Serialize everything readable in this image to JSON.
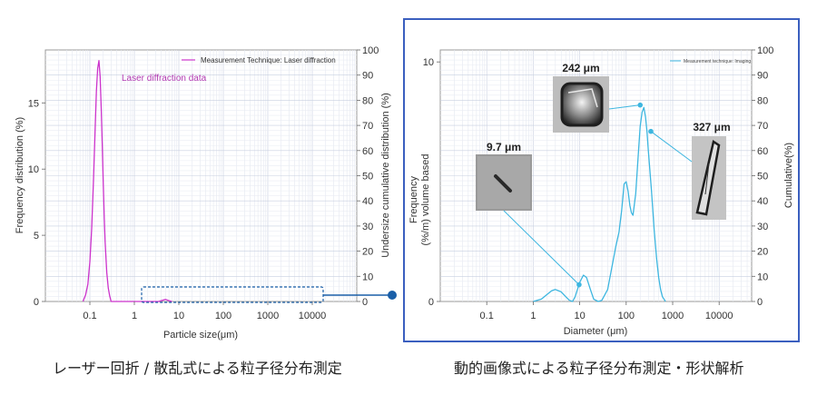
{
  "colors": {
    "laser": "#cc33cc",
    "imaging": "#3db6e0",
    "connector": "#1a5fa8",
    "frame": "#3b5fbf"
  },
  "chart_data": [
    {
      "type": "line",
      "title": "",
      "xlabel": "Particle size(μm)",
      "ylabel": "Frequency distribution (%)",
      "y2label": "Undersize cumulative distribution (%)",
      "x_scale": "log",
      "xlim": [
        0.01,
        100000
      ],
      "ylim": [
        0,
        19
      ],
      "y2lim": [
        0,
        100
      ],
      "x_ticks": [
        "0.1",
        "1",
        "10",
        "100",
        "1000",
        "10000"
      ],
      "y_ticks": [
        "0",
        "5",
        "10",
        "15"
      ],
      "y2_ticks": [
        "0",
        "10",
        "20",
        "30",
        "40",
        "50",
        "60",
        "70",
        "80",
        "90",
        "100"
      ],
      "legend": "Measurement Technique: Laser diffraction",
      "legend_position": "top-right",
      "annotation": "Laser diffraction data",
      "grid": true,
      "series": [
        {
          "name": "Measurement Technique: Laser diffraction",
          "x": [
            0.07,
            0.08,
            0.09,
            0.1,
            0.11,
            0.12,
            0.13,
            0.14,
            0.15,
            0.16,
            0.17,
            0.18,
            0.19,
            0.2,
            0.21,
            0.22,
            0.24,
            0.26,
            0.28,
            0.3,
            3.5,
            4,
            5,
            6,
            7
          ],
          "y": [
            0,
            0.5,
            1.3,
            3.0,
            5.5,
            9.0,
            12.6,
            15.9,
            17.6,
            18.2,
            17.0,
            14.6,
            11.7,
            8.8,
            6.4,
            4.5,
            2.2,
            1.0,
            0.4,
            0,
            0,
            0.06,
            0.16,
            0.06,
            0
          ]
        }
      ]
    },
    {
      "type": "line",
      "title": "",
      "xlabel": "Diameter (μm)",
      "ylabel": "Frequency\n(%/m) volume based",
      "y2label": "Cumulative(%)",
      "x_scale": "log",
      "xlim": [
        0.01,
        50000
      ],
      "ylim": [
        0,
        10.5
      ],
      "y2lim": [
        0,
        100
      ],
      "x_ticks": [
        "0.1",
        "1",
        "10",
        "100",
        "1000",
        "10000"
      ],
      "y_ticks": [
        "0",
        "10"
      ],
      "y2_ticks": [
        "0",
        "10",
        "20",
        "30",
        "40",
        "50",
        "60",
        "70",
        "80",
        "90",
        "100"
      ],
      "legend": "Measurement technique: Imaging",
      "legend_position": "top-right",
      "grid": true,
      "series": [
        {
          "name": "Measurement technique: Imaging",
          "x": [
            1,
            1.5,
            2,
            2.5,
            3,
            4,
            5,
            6,
            7,
            8,
            10,
            12,
            14,
            17,
            20,
            25,
            30,
            40,
            50,
            60,
            70,
            80,
            90,
            100,
            110,
            120,
            130,
            140,
            160,
            180,
            200,
            220,
            240,
            260,
            280,
            300,
            350,
            400,
            450,
            500,
            550,
            600,
            700
          ],
          "y": [
            0,
            0.1,
            0.3,
            0.45,
            0.5,
            0.4,
            0.2,
            0.05,
            0.0,
            0.2,
            0.8,
            1.1,
            1.0,
            0.5,
            0.1,
            0.0,
            0.05,
            0.5,
            1.5,
            2.3,
            2.9,
            3.8,
            4.9,
            5.0,
            4.6,
            4.0,
            3.7,
            3.6,
            4.5,
            6.0,
            7.3,
            7.9,
            8.1,
            7.7,
            7.1,
            6.3,
            4.6,
            3.0,
            1.8,
            1.0,
            0.5,
            0.2,
            0
          ]
        }
      ],
      "annotations": [
        {
          "label": "9.7 μm",
          "x": 9.7,
          "y": 0.7
        },
        {
          "label": "242 μm",
          "x": 200,
          "y": 8.2
        },
        {
          "label": "327 μm",
          "x": 340,
          "y": 7.1
        }
      ]
    }
  ],
  "captions": {
    "left": "レーザー回折 / 散乱式による粒子径分布測定",
    "right": "動的画像式による粒子径分布測定・形状解析"
  }
}
